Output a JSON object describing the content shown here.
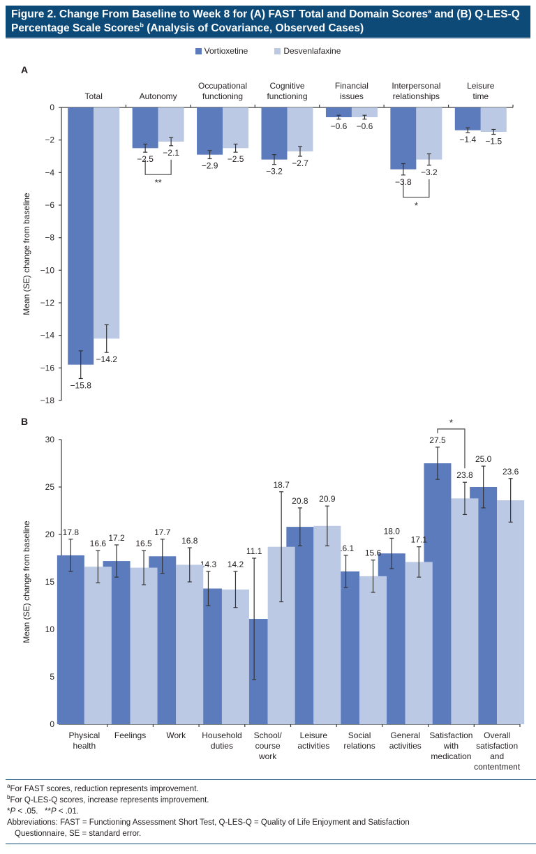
{
  "figure": {
    "title_line1_a": "Figure 2. Change From Baseline to Week 8 for (A) FAST Total and Domain Scores",
    "title_sup_a": "a",
    "title_line1_b": " and (B) Q-LES-Q",
    "title_line2_a": "Percentage Scale Scores",
    "title_sup_b": "b",
    "title_line2_b": " (Analysis of Covariance, Observed Cases)"
  },
  "legend": [
    {
      "label": "Vortioxetine",
      "color": "#5b7bbd"
    },
    {
      "label": "Desvenlafaxine",
      "color": "#bcc9e4"
    }
  ],
  "footnotes": {
    "a_sup": "a",
    "a_text": "For FAST scores, reduction represents improvement.",
    "b_sup": "b",
    "b_text": "For Q-LES-Q scores, increase represents improvement.",
    "sig_1_star": "*",
    "sig_1_p": "P",
    "sig_1_text": " < .05.",
    "sig_2_star": "**",
    "sig_2_p": "P",
    "sig_2_text": " < .01.",
    "abbrev_line1": "Abbreviations: FAST = Functioning Assessment Short Test, Q-LES-Q = Quality of Life Enjoyment and Satisfaction",
    "abbrev_line2": "Questionnaire, SE = standard error."
  },
  "chart_data": [
    {
      "panel": "A",
      "type": "bar",
      "title": "",
      "xlabel": "",
      "ylabel": "Mean (SE) change from baseline",
      "ylim": [
        -18,
        0
      ],
      "yticks": [
        0,
        -2,
        -4,
        -6,
        -8,
        -10,
        -12,
        -14,
        -16,
        -18
      ],
      "x_axis_position": "top",
      "categories": [
        [
          "Total"
        ],
        [
          "Autonomy"
        ],
        [
          "Occupational",
          "functioning"
        ],
        [
          "Cognitive",
          "functioning"
        ],
        [
          "Financial",
          "issues"
        ],
        [
          "Interpersonal",
          "relationships"
        ],
        [
          "Leisure",
          "time"
        ]
      ],
      "series": [
        {
          "name": "Vortioxetine",
          "color": "#5b7bbd",
          "values": [
            -15.8,
            -2.5,
            -2.9,
            -3.2,
            -0.6,
            -3.8,
            -1.4
          ],
          "se": [
            0.85,
            0.25,
            0.25,
            0.3,
            0.12,
            0.35,
            0.15
          ],
          "labels": [
            "−15.8",
            "−2.5",
            "−2.9",
            "−3.2",
            "−0.6",
            "−3.8",
            "−1.4"
          ]
        },
        {
          "name": "Desvenlafaxine",
          "color": "#bcc9e4",
          "values": [
            -14.2,
            -2.1,
            -2.5,
            -2.7,
            -0.6,
            -3.2,
            -1.5
          ],
          "se": [
            0.85,
            0.25,
            0.25,
            0.3,
            0.12,
            0.35,
            0.15
          ],
          "labels": [
            "−14.2",
            "−2.1",
            "−2.5",
            "−2.7",
            "−0.6",
            "−3.2",
            "−1.5"
          ]
        }
      ],
      "significance": [
        {
          "category_index": 1,
          "marker": "**"
        },
        {
          "category_index": 5,
          "marker": "*"
        }
      ],
      "grid": false
    },
    {
      "panel": "B",
      "type": "bar",
      "title": "",
      "xlabel": "",
      "ylabel": "Mean (SE) change from baseline",
      "ylim": [
        0,
        30
      ],
      "yticks": [
        0,
        5,
        10,
        15,
        20,
        25,
        30
      ],
      "x_axis_position": "bottom",
      "categories": [
        [
          "Physical",
          "health"
        ],
        [
          "Feelings"
        ],
        [
          "Work"
        ],
        [
          "Household",
          "duties"
        ],
        [
          "School/",
          "course",
          "work"
        ],
        [
          "Leisure",
          "activities"
        ],
        [
          "Social",
          "relations"
        ],
        [
          "General",
          "activities"
        ],
        [
          "Satisfaction",
          "with",
          "medication"
        ],
        [
          "Overall",
          "satisfaction",
          "and",
          "contentment"
        ]
      ],
      "series": [
        {
          "name": "Vortioxetine",
          "color": "#5b7bbd",
          "values": [
            17.8,
            17.2,
            17.7,
            14.3,
            11.1,
            20.8,
            16.1,
            18.0,
            27.5,
            25.0
          ],
          "se": [
            1.7,
            1.7,
            1.8,
            1.8,
            6.4,
            2.0,
            1.7,
            1.6,
            1.7,
            2.2
          ],
          "labels": [
            "17.8",
            "17.2",
            "17.7",
            "14.3",
            "11.1",
            "20.8",
            "16.1",
            "18.0",
            "27.5",
            "25.0"
          ]
        },
        {
          "name": "Desvenlafaxine",
          "color": "#bcc9e4",
          "values": [
            16.6,
            16.5,
            16.8,
            14.2,
            18.7,
            20.9,
            15.6,
            17.1,
            23.8,
            23.6
          ],
          "se": [
            1.7,
            1.8,
            1.8,
            1.9,
            5.8,
            2.1,
            1.7,
            1.6,
            1.7,
            2.3
          ],
          "labels": [
            "16.6",
            "16.5",
            "16.8",
            "14.2",
            "18.7",
            "20.9",
            "15.6",
            "17.1",
            "23.8",
            "23.6"
          ]
        }
      ],
      "significance": [
        {
          "category_index": 8,
          "marker": "*"
        }
      ],
      "grid": false
    }
  ]
}
